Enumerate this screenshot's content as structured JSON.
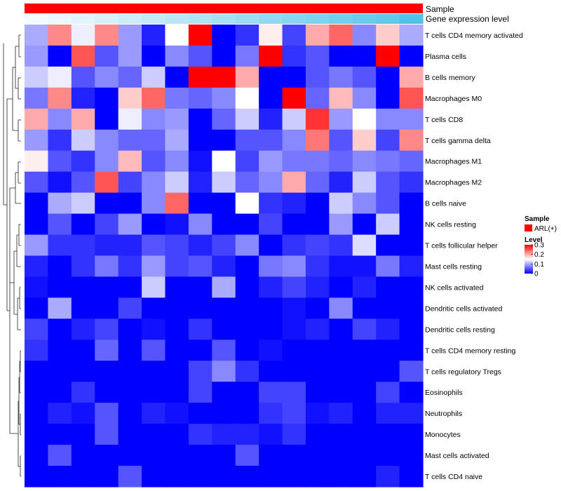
{
  "chart_data": {
    "type": "heatmap",
    "title": "",
    "annotations": {
      "sample_track_label": "Sample",
      "expression_track_label": "Gene expression level",
      "sample_color": "#ff0000",
      "expression_gradient": [
        "#f4fbfe",
        "#4fc3ea"
      ]
    },
    "rows": [
      "T cells CD4 memory activated",
      "Plasma cells",
      "B cells memory",
      "Macrophages M0",
      "T cells CD8",
      "T cells gamma delta",
      "Macrophages M1",
      "Macrophages M2",
      "B cells naive",
      "NK cells resting",
      "T cells follicular helper",
      "Mast cells resting",
      "NK cells activated",
      "Dendritic cells activated",
      "Dendritic cells resting",
      "T cells CD4 memory resting",
      "T cells regulatory  Tregs",
      "Eosinophils",
      "Neutrophils",
      "Monocytes",
      "Mast cells activated",
      "T cells CD4 naive"
    ],
    "columns": 17,
    "values": [
      [
        0.1,
        0.22,
        0.14,
        0.22,
        0.09,
        0.02,
        0.15,
        0.3,
        0.0,
        0.03,
        0.16,
        0.04,
        0.2,
        0.24,
        0.08,
        0.18,
        0.1
      ],
      [
        0.09,
        0.0,
        0.25,
        0.05,
        0.09,
        0.0,
        0.08,
        0.05,
        0.0,
        0.07,
        0.3,
        0.03,
        0.05,
        0.0,
        0.0,
        0.3,
        0.0
      ],
      [
        0.12,
        0.14,
        0.05,
        0.08,
        0.06,
        0.12,
        0.0,
        0.3,
        0.3,
        0.2,
        0.0,
        0.0,
        0.05,
        0.07,
        0.05,
        0.0,
        0.2
      ],
      [
        0.07,
        0.22,
        0.02,
        0.0,
        0.18,
        0.24,
        0.07,
        0.06,
        0.08,
        0.15,
        0.0,
        0.3,
        0.06,
        0.19,
        0.08,
        0.0,
        0.25
      ],
      [
        0.2,
        0.08,
        0.2,
        0.0,
        0.14,
        0.08,
        0.09,
        0.0,
        0.06,
        0.12,
        0.02,
        0.12,
        0.27,
        0.09,
        0.15,
        0.08,
        0.08
      ],
      [
        0.09,
        0.03,
        0.12,
        0.08,
        0.06,
        0.06,
        0.1,
        0.0,
        0.0,
        0.05,
        0.05,
        0.08,
        0.23,
        0.05,
        0.18,
        0.04,
        0.22
      ],
      [
        0.16,
        0.05,
        0.03,
        0.08,
        0.19,
        0.05,
        0.08,
        0.01,
        0.15,
        0.04,
        0.09,
        0.07,
        0.07,
        0.06,
        0.08,
        0.07,
        0.06
      ],
      [
        0.05,
        0.01,
        0.05,
        0.25,
        0.04,
        0.08,
        0.12,
        0.02,
        0.12,
        0.06,
        0.08,
        0.2,
        0.06,
        0.02,
        0.12,
        0.05,
        0.03
      ],
      [
        0.0,
        0.1,
        0.12,
        0.0,
        0.0,
        0.08,
        0.24,
        0.0,
        0.0,
        0.15,
        0.03,
        0.02,
        0.0,
        0.12,
        0.08,
        0.05,
        0.0
      ],
      [
        0.0,
        0.05,
        0.0,
        0.04,
        0.09,
        0.0,
        0.01,
        0.08,
        0.0,
        0.0,
        0.04,
        0.0,
        0.0,
        0.09,
        0.0,
        0.12,
        0.0
      ],
      [
        0.09,
        0.03,
        0.03,
        0.02,
        0.02,
        0.05,
        0.04,
        0.02,
        0.04,
        0.08,
        0.0,
        0.03,
        0.04,
        0.03,
        0.13,
        0.0,
        0.0
      ],
      [
        0.02,
        0.0,
        0.03,
        0.07,
        0.03,
        0.09,
        0.04,
        0.05,
        0.02,
        0.0,
        0.07,
        0.08,
        0.03,
        0.01,
        0.01,
        0.07,
        0.02
      ],
      [
        0.01,
        0.0,
        0.0,
        0.0,
        0.0,
        0.12,
        0.0,
        0.0,
        0.1,
        0.0,
        0.02,
        0.04,
        0.02,
        0.0,
        0.02,
        0.0,
        0.0
      ],
      [
        0.0,
        0.1,
        0.0,
        0.0,
        0.04,
        0.0,
        0.0,
        0.0,
        0.0,
        0.0,
        0.0,
        0.01,
        0.0,
        0.08,
        0.0,
        0.0,
        0.0
      ],
      [
        0.04,
        0.0,
        0.02,
        0.04,
        0.0,
        0.01,
        0.0,
        0.03,
        0.0,
        0.0,
        0.0,
        0.01,
        0.02,
        0.0,
        0.04,
        0.02,
        0.0
      ],
      [
        0.03,
        0.0,
        0.0,
        0.06,
        0.0,
        0.05,
        0.0,
        0.0,
        0.05,
        0.0,
        0.01,
        0.0,
        0.0,
        0.0,
        0.0,
        0.0,
        0.0
      ],
      [
        0.0,
        0.0,
        0.0,
        0.0,
        0.0,
        0.0,
        0.0,
        0.04,
        0.08,
        0.03,
        0.0,
        0.0,
        0.0,
        0.0,
        0.0,
        0.0,
        0.05
      ],
      [
        0.0,
        0.0,
        0.03,
        0.0,
        0.0,
        0.0,
        0.0,
        0.04,
        0.0,
        0.0,
        0.04,
        0.04,
        0.0,
        0.0,
        0.0,
        0.04,
        0.0
      ],
      [
        0.0,
        0.02,
        0.01,
        0.05,
        0.0,
        0.02,
        0.01,
        0.0,
        0.0,
        0.0,
        0.03,
        0.04,
        0.01,
        0.02,
        0.0,
        0.02,
        0.02
      ],
      [
        0.0,
        0.0,
        0.0,
        0.05,
        0.0,
        0.0,
        0.0,
        0.03,
        0.02,
        0.02,
        0.01,
        0.03,
        0.0,
        0.0,
        0.0,
        0.0,
        0.0
      ],
      [
        0.0,
        0.05,
        0.0,
        0.0,
        0.0,
        0.0,
        0.0,
        0.0,
        0.0,
        0.05,
        0.0,
        0.0,
        0.0,
        0.0,
        0.0,
        0.0,
        0.0
      ],
      [
        0.0,
        0.0,
        0.0,
        0.0,
        0.05,
        0.0,
        0.0,
        0.0,
        0.0,
        0.0,
        0.0,
        0.0,
        0.0,
        0.0,
        0.0,
        0.02,
        0.0
      ]
    ],
    "expression_level": [
      0.0,
      0.06,
      0.12,
      0.18,
      0.24,
      0.3,
      0.36,
      0.42,
      0.48,
      0.54,
      0.6,
      0.66,
      0.72,
      0.78,
      0.84,
      0.9,
      1.0
    ],
    "colorscale": {
      "min": 0,
      "max": 0.3,
      "stops": [
        "#0000ff",
        "#ffffff",
        "#ff0000"
      ],
      "ticks": [
        "0",
        "0.1",
        "0.2",
        "0.3"
      ]
    },
    "legend": {
      "sample_title": "Sample",
      "sample_entry": "ARL(+)",
      "level_title": "Level"
    },
    "dendrogram": "rows"
  }
}
